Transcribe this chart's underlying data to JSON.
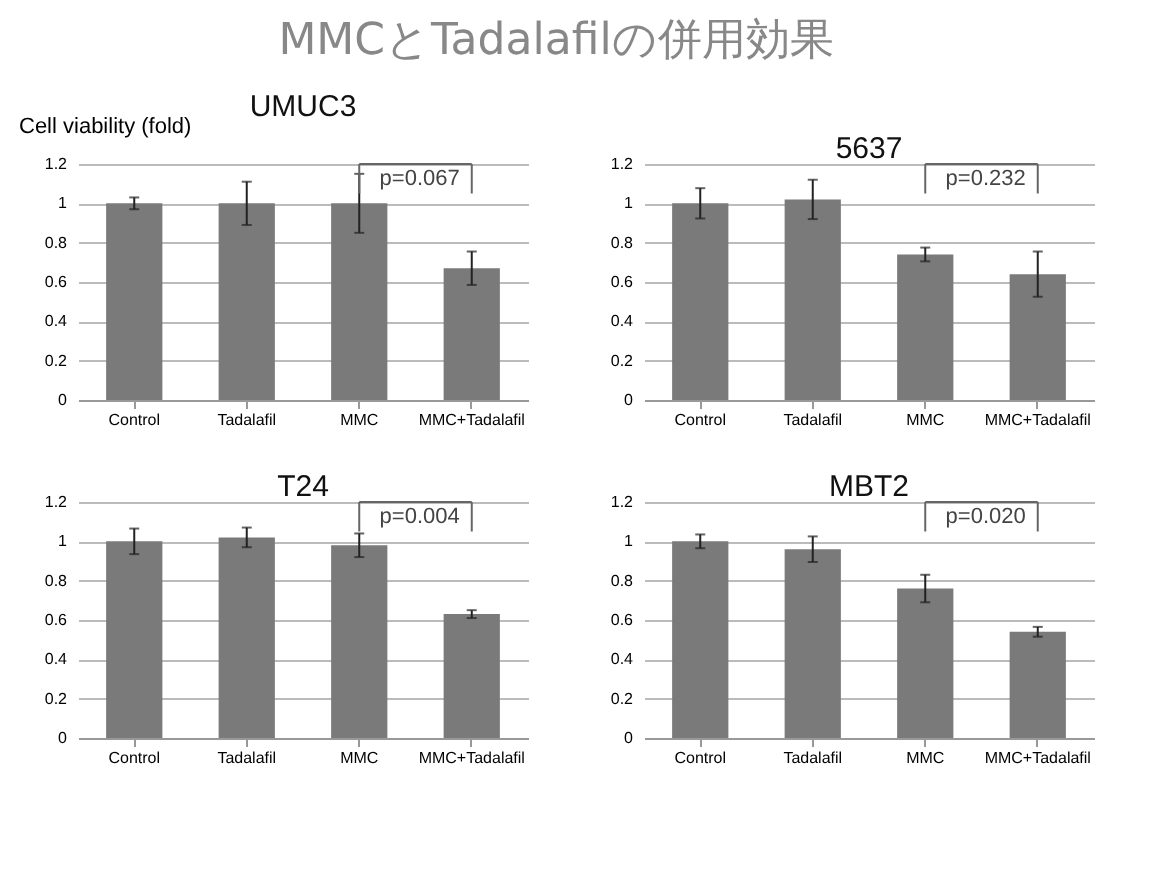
{
  "chart_data": [
    {
      "type": "bar",
      "title": "UMUC3",
      "ylabel": "Cell viability (fold)",
      "categories": [
        "Control",
        "Tadalafil",
        "MMC",
        "MMC+Tadalafil"
      ],
      "values": [
        1.0,
        1.0,
        1.0,
        0.67
      ],
      "errors": [
        0.03,
        0.11,
        0.15,
        0.085
      ],
      "color": "#7a7a7a",
      "ylim": [
        0,
        1.2
      ],
      "yticks": [
        0,
        0.2,
        0.4,
        0.6,
        0.8,
        1,
        1.2
      ],
      "grid": "y",
      "annotations": [
        "MMCとTadalafilの併用効果",
        "p=0.067"
      ]
    },
    {
      "type": "bar",
      "title": "5637",
      "categories": [
        "Control",
        "Tadalafil",
        "MMC",
        "MMC+Tadalafil"
      ],
      "values": [
        1.0,
        1.02,
        0.74,
        0.64
      ],
      "errors": [
        0.077,
        0.1,
        0.035,
        0.115
      ],
      "color": "#7a7a7a",
      "ylim": [
        0,
        1.2
      ],
      "yticks": [
        0,
        0.2,
        0.4,
        0.6,
        0.8,
        1,
        1.2
      ],
      "grid": "y",
      "annotations": [
        "p=0.232"
      ]
    },
    {
      "type": "bar",
      "title": "T24",
      "categories": [
        "Control",
        "Tadalafil",
        "MMC",
        "MMC+Tadalafil"
      ],
      "values": [
        1.0,
        1.02,
        0.98,
        0.63
      ],
      "errors": [
        0.065,
        0.05,
        0.06,
        0.02
      ],
      "color": "#7a7a7a",
      "ylim": [
        0,
        1.2
      ],
      "yticks": [
        0,
        0.2,
        0.4,
        0.6,
        0.8,
        1,
        1.2
      ],
      "grid": "y",
      "annotations": [
        "p=0.004"
      ]
    },
    {
      "type": "bar",
      "title": "MBT2",
      "categories": [
        "Control",
        "Tadalafil",
        "MMC",
        "MMC+Tadalafil"
      ],
      "values": [
        1.0,
        0.96,
        0.76,
        0.54
      ],
      "errors": [
        0.035,
        0.065,
        0.07,
        0.025
      ],
      "color": "#7a7a7a",
      "ylim": [
        0,
        1.2
      ],
      "yticks": [
        0,
        0.2,
        0.4,
        0.6,
        0.8,
        1,
        1.2
      ],
      "grid": "y",
      "annotations": [
        "p=0.020"
      ]
    }
  ]
}
